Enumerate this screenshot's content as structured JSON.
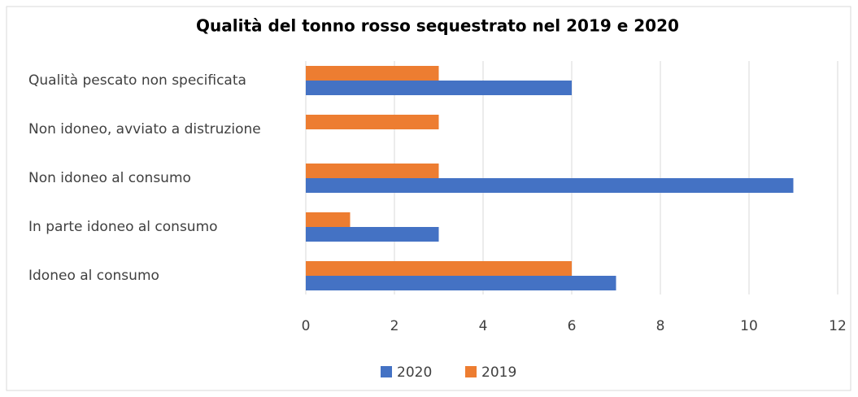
{
  "chart_data": {
    "type": "barh",
    "title": "Qualità del tonno rosso sequestrato nel 2019 e 2020",
    "categories": [
      "Qualità pescato non specificata",
      "Non idoneo, avviato a distruzione",
      "Non idoneo al consumo",
      "In parte idoneo al consumo",
      "Idoneo al consumo"
    ],
    "series": [
      {
        "name": "2020",
        "color": "#4472c4",
        "values": [
          6,
          0,
          11,
          3,
          7
        ]
      },
      {
        "name": "2019",
        "color": "#ed7d31",
        "values": [
          3,
          3,
          3,
          1,
          6
        ]
      }
    ],
    "xlim": [
      0,
      12
    ],
    "xticks": [
      0,
      2,
      4,
      6,
      8,
      10,
      12
    ],
    "grid": true,
    "legend": "bottom"
  }
}
